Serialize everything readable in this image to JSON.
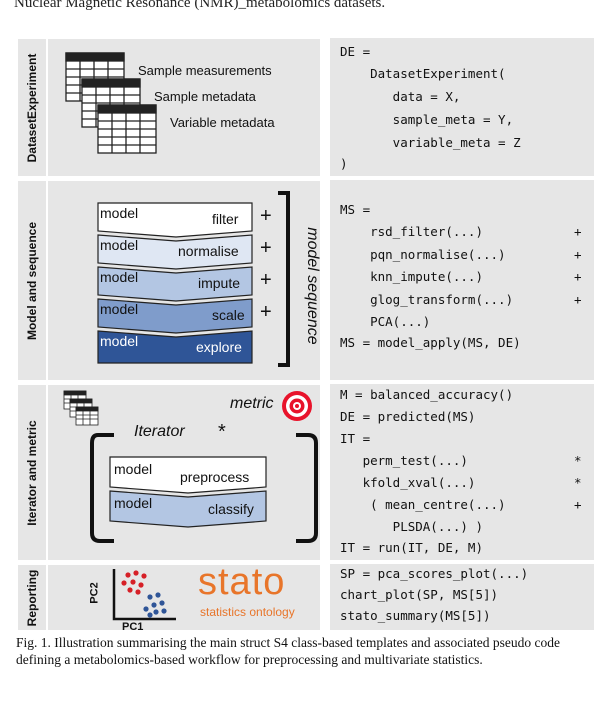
{
  "header": {
    "top_text": "Nuclear Magnetic Resonance (NMR)_metabolomics datasets."
  },
  "panels": {
    "dataset": {
      "label": "DatasetExperiment",
      "sheets": [
        "Sample measurements",
        "Sample metadata",
        "Variable metadata"
      ]
    },
    "model": {
      "label": "Model and sequence",
      "bands": [
        {
          "model": "model",
          "name": "filter",
          "color": "#ffffff"
        },
        {
          "model": "model",
          "name": "normalise",
          "color": "#dfe7f3"
        },
        {
          "model": "model",
          "name": "impute",
          "color": "#b3c6e3"
        },
        {
          "model": "model",
          "name": "scale",
          "color": "#7f9ccb"
        },
        {
          "model": "model",
          "name": "explore",
          "color": "#2f5597"
        }
      ],
      "plus": "+",
      "sequence_label": "model sequence"
    },
    "iterator": {
      "label": "Iterator and metric",
      "metric_label": "metric",
      "iterator_label": "Iterator",
      "asterisk": "*",
      "bands": [
        {
          "model": "model",
          "name": "preprocess",
          "color": "#ffffff"
        },
        {
          "model": "model",
          "name": "classify",
          "color": "#b3c6e3"
        }
      ]
    },
    "reporting": {
      "label": "Reporting",
      "pc2": "PC2",
      "pc1": "PC1",
      "stato_logo": "stato",
      "stato_tagline": "statistics ontology"
    }
  },
  "code": {
    "dataset": [
      "DE =",
      "    DatasetExperiment(",
      "       data = X,",
      "       sample_meta = Y,",
      "       variable_meta = Z",
      ")"
    ],
    "model": [
      "MS =",
      "    rsd_filter(...)",
      "    pqn_normalise(...)",
      "    knn_impute(...)",
      "    glog_transform(...)",
      "    PCA(...)",
      "MS = model_apply(MS, DE)"
    ],
    "model_plus": [
      "+",
      "+",
      "+",
      "+"
    ],
    "iterator": [
      "M = balanced_accuracy()",
      "DE = predicted(MS)",
      "IT =",
      "   perm_test(...)",
      "   kfold_xval(...)",
      "    ( mean_centre(...)",
      "       PLSDA(...) )",
      "IT = run(IT, DE, M)"
    ],
    "iterator_marks": [
      "*",
      "*",
      "+"
    ],
    "reporting": [
      "SP = pca_scores_plot(...)",
      "chart_plot(SP, MS[5])",
      "stato_summary(MS[5])"
    ]
  },
  "caption": {
    "text": "Fig. 1. Illustration summarising the main struct S4 class-based templates and associated pseudo code defining a metabolomics-based workflow for preprocessing and multivariate statistics."
  }
}
